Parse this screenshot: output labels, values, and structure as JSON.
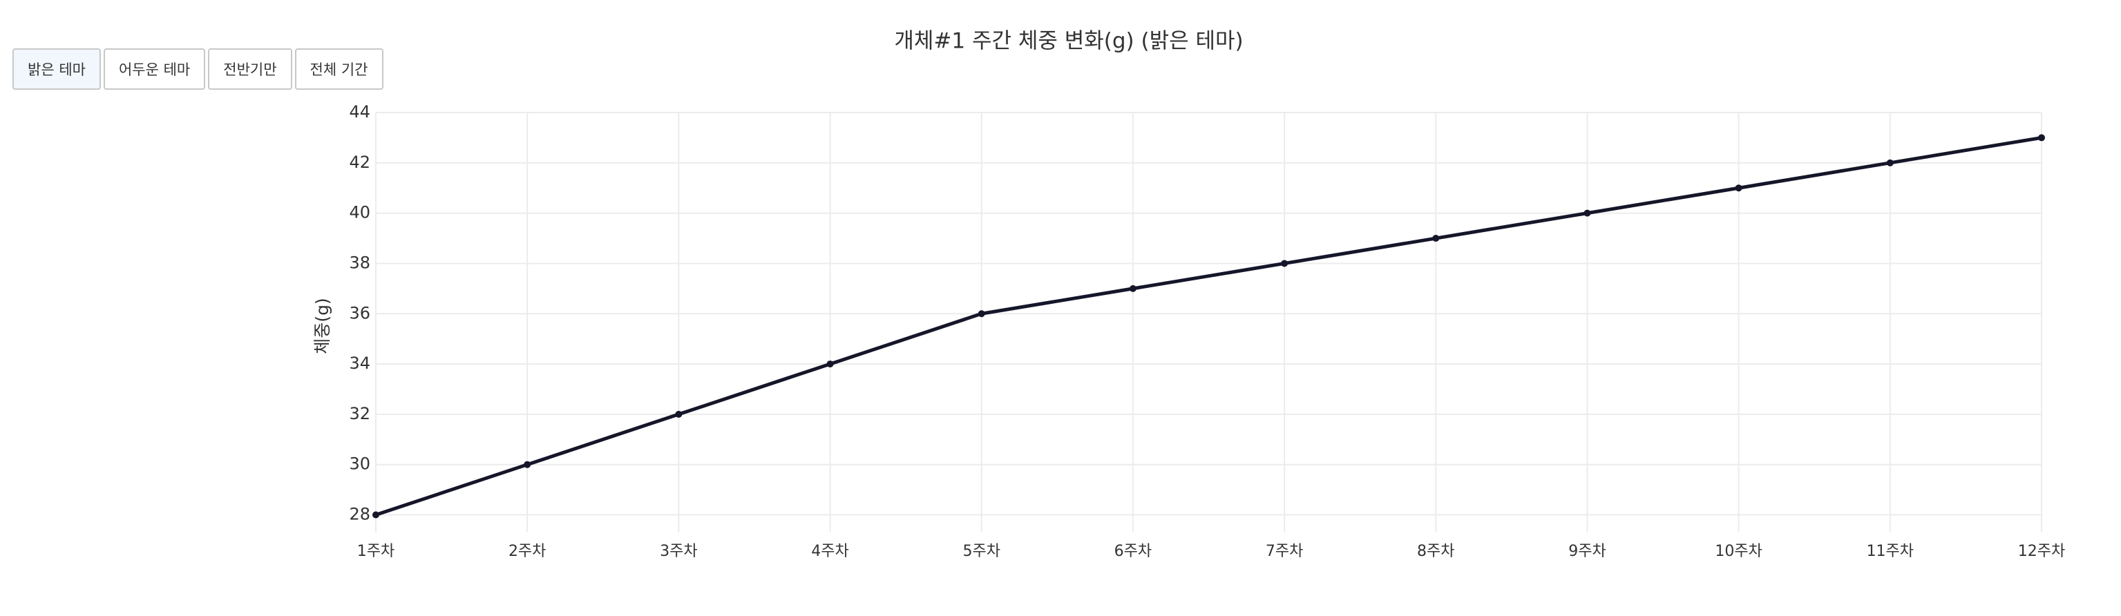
{
  "controls": [
    "밝은 테마",
    "어두운 테마",
    "전반기만",
    "전체 기간"
  ],
  "chart_data": {
    "type": "line",
    "title": "개체#1 주간 체중 변화(g) (밝은 테마)",
    "y_label": "체중(g)",
    "categories": [
      "1주차",
      "2주차",
      "3주차",
      "4주차",
      "5주차",
      "6주차",
      "7주차",
      "8주차",
      "9주차",
      "10주차",
      "11주차",
      "12주차"
    ],
    "series": [
      {
        "name": "개체#1",
        "color": "#16162a",
        "values": [
          28,
          30,
          32,
          34,
          36,
          37,
          38,
          39,
          40,
          41,
          42,
          43
        ]
      }
    ],
    "ylim": [
      27.3,
      44
    ],
    "yticks": [
      28,
      30,
      32,
      34,
      36,
      38,
      40,
      42,
      44
    ],
    "grid": true
  }
}
